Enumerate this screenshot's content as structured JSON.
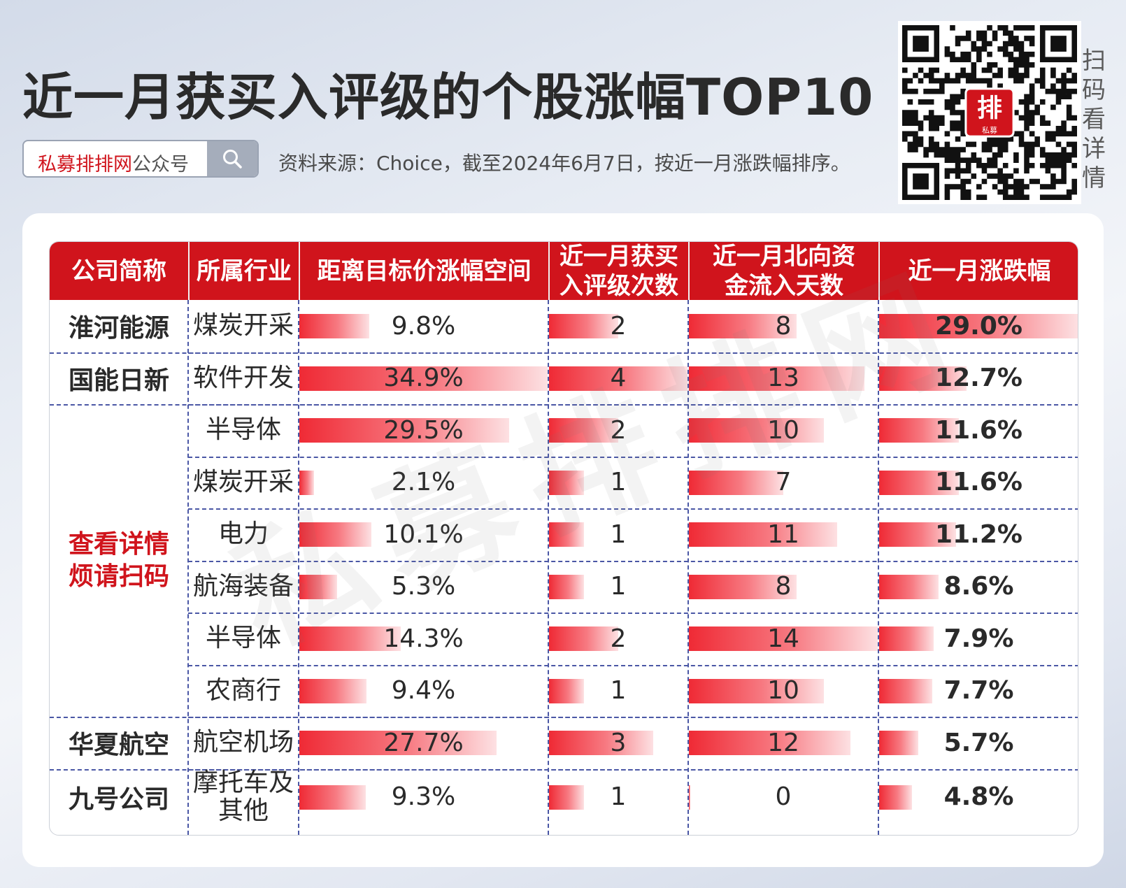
{
  "header": {
    "title": "近一月获买入评级的个股涨幅TOP10",
    "search_brand": "私募排排网",
    "search_rest": "公众号",
    "source": "资料来源：Choice，截至2024年6月7日，按近一月涨跌幅排序。",
    "qr_caption": "扫码看详情",
    "qr_logo_text": "排",
    "qr_logo_sub": "私募"
  },
  "watermark": "私募排排网",
  "colors": {
    "accent": "#d0141c",
    "bar_start": "#ef2a35",
    "bar_end": "#fde1e3",
    "divider": "#4a57a5"
  },
  "table": {
    "columns": [
      "公司简称",
      "所属行业",
      "距离目标价涨幅空间",
      "近一月获买入评级次数",
      "近一月北向资金流入天数",
      "近一月涨跌幅"
    ],
    "company_groups": [
      {
        "name": "淮河能源",
        "rows": 1
      },
      {
        "name": "国能日新",
        "rows": 1
      },
      {
        "name": "查看详情烦请扫码",
        "rows": 6,
        "highlight": true
      },
      {
        "name": "华夏航空",
        "rows": 1
      },
      {
        "name": "九号公司",
        "rows": 1
      }
    ]
  },
  "chart_data": {
    "type": "table",
    "columns": [
      "公司简称",
      "所属行业",
      "距离目标价涨幅空间",
      "近一月获买入评级次数",
      "近一月北向资金流入天数",
      "近一月涨跌幅"
    ],
    "rows": [
      {
        "industry": "煤炭开采",
        "upside": 9.8,
        "upside_label": "9.8%",
        "ratings": 2,
        "north_days": 8,
        "change": 29.0,
        "change_label": "29.0%"
      },
      {
        "industry": "软件开发",
        "upside": 34.9,
        "upside_label": "34.9%",
        "ratings": 4,
        "north_days": 13,
        "change": 12.7,
        "change_label": "12.7%"
      },
      {
        "industry": "半导体",
        "upside": 29.5,
        "upside_label": "29.5%",
        "ratings": 2,
        "north_days": 10,
        "change": 11.6,
        "change_label": "11.6%"
      },
      {
        "industry": "煤炭开采",
        "upside": 2.1,
        "upside_label": "2.1%",
        "ratings": 1,
        "north_days": 7,
        "change": 11.6,
        "change_label": "11.6%"
      },
      {
        "industry": "电力",
        "upside": 10.1,
        "upside_label": "10.1%",
        "ratings": 1,
        "north_days": 11,
        "change": 11.2,
        "change_label": "11.2%"
      },
      {
        "industry": "航海装备",
        "upside": 5.3,
        "upside_label": "5.3%",
        "ratings": 1,
        "north_days": 8,
        "change": 8.6,
        "change_label": "8.6%"
      },
      {
        "industry": "半导体",
        "upside": 14.3,
        "upside_label": "14.3%",
        "ratings": 2,
        "north_days": 14,
        "change": 7.9,
        "change_label": "7.9%"
      },
      {
        "industry": "农商行",
        "upside": 9.4,
        "upside_label": "9.4%",
        "ratings": 1,
        "north_days": 10,
        "change": 7.7,
        "change_label": "7.7%"
      },
      {
        "industry": "航空机场",
        "upside": 27.7,
        "upside_label": "27.7%",
        "ratings": 3,
        "north_days": 12,
        "change": 5.7,
        "change_label": "5.7%"
      },
      {
        "industry": "摩托车及其他",
        "upside": 9.3,
        "upside_label": "9.3%",
        "ratings": 1,
        "north_days": 0,
        "change": 4.8,
        "change_label": "4.8%"
      }
    ]
  }
}
